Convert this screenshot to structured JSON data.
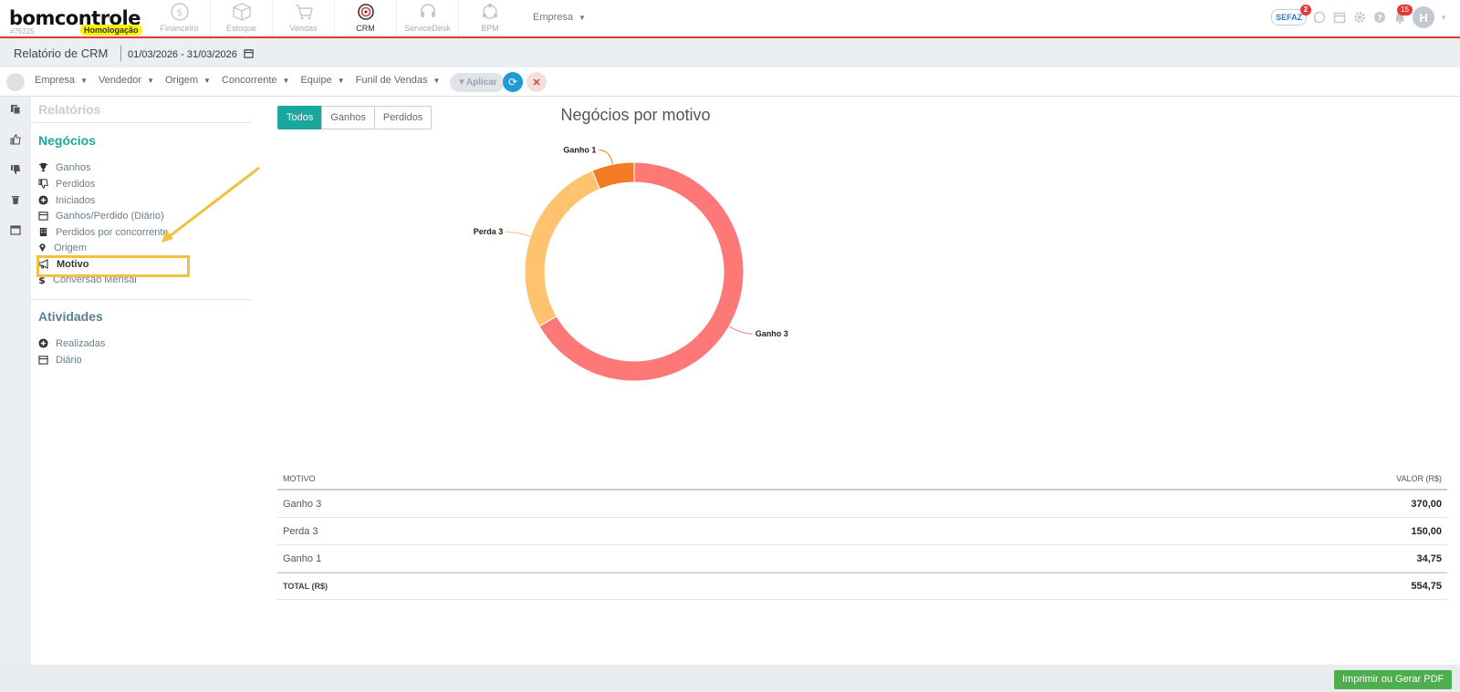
{
  "header": {
    "logo": "bomcontrole",
    "account_code": "#76225",
    "environment_badge": "Homologação",
    "modules": [
      {
        "label": "Financeiro",
        "icon": "dollar-circle-icon"
      },
      {
        "label": "Estoque",
        "icon": "box-icon"
      },
      {
        "label": "Vendas",
        "icon": "cart-icon"
      },
      {
        "label": "CRM",
        "icon": "target-icon"
      },
      {
        "label": "ServiceDesk",
        "icon": "headset-icon"
      },
      {
        "label": "BPM",
        "icon": "workflow-icon"
      }
    ],
    "empresa_label": "Empresa",
    "sefaz_label": "SEFAZ",
    "sefaz_badge": "2",
    "notification_badge": "15",
    "avatar_initial": "H"
  },
  "subheader": {
    "title": "Relatório de CRM",
    "date_range": "01/03/2026 - 31/03/2026"
  },
  "filters": {
    "items": [
      "Empresa",
      "Vendedor",
      "Origem",
      "Concorrente",
      "Equipe",
      "Funil de Vendas"
    ],
    "apply_label": "Aplicar"
  },
  "menu": {
    "header": "Relatórios",
    "sections": [
      {
        "title": "Negócios",
        "items": [
          {
            "label": "Ganhos",
            "icon": "trophy-icon"
          },
          {
            "label": "Perdidos",
            "icon": "thumbs-down-icon"
          },
          {
            "label": "Iniciados",
            "icon": "plus-circle-icon"
          },
          {
            "label": "Ganhos/Perdido (Diário)",
            "icon": "calendar-icon"
          },
          {
            "label": "Perdidos por concorrente",
            "icon": "building-icon"
          },
          {
            "label": "Origem",
            "icon": "map-pin-icon"
          },
          {
            "label": "Motivo",
            "icon": "megaphone-icon"
          },
          {
            "label": "Conversão Mensal",
            "icon": "dollar-icon"
          }
        ]
      },
      {
        "title": "Atividades",
        "items": [
          {
            "label": "Realizadas",
            "icon": "plus-circle-icon"
          },
          {
            "label": "Diário",
            "icon": "calendar-icon"
          }
        ]
      }
    ]
  },
  "tabs": [
    "Todos",
    "Ganhos",
    "Perdidos"
  ],
  "colors": {
    "ganho3": "#ff7878",
    "perda3": "#ffc26f",
    "ganho1": "#f27b23",
    "accent": "#1aa89e"
  },
  "chart_data": {
    "type": "pie",
    "title": "Negócios por motivo",
    "labels": [
      "Ganho 3",
      "Perda 3",
      "Ganho 1"
    ],
    "values": [
      370.0,
      150.0,
      34.75
    ],
    "donut": true,
    "legend": "none"
  },
  "table": {
    "headers": [
      "MOTIVO",
      "VALOR (R$)"
    ],
    "rows": [
      {
        "motivo": "Ganho 3",
        "valor": "370,00"
      },
      {
        "motivo": "Perda 3",
        "valor": "150,00"
      },
      {
        "motivo": "Ganho 1",
        "valor": "34,75"
      }
    ],
    "total_label": "TOTAL (R$)",
    "total_value": "554,75"
  },
  "footer": {
    "pdf_button": "Imprimir ou Gerar PDF"
  }
}
